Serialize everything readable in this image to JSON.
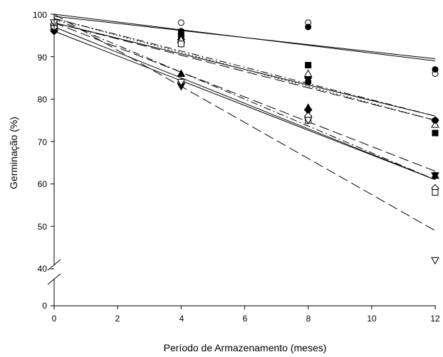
{
  "chart_data": {
    "type": "scatter",
    "xlabel": "Período de Armazenamento (meses)",
    "ylabel": "Germinação (%)",
    "x_ticks": [
      "0",
      "2",
      "4",
      "6",
      "8",
      "10",
      "12"
    ],
    "y_ticks": [
      "0",
      "40",
      "50",
      "60",
      "70",
      "80",
      "90",
      "100"
    ],
    "xlim": [
      0,
      12
    ],
    "ylim_upper": [
      40,
      100
    ],
    "ylim_lower": [
      0,
      40
    ],
    "axis_break": true,
    "grid": false,
    "legend": "none",
    "series": [
      {
        "marker": "circle-open",
        "dash": "solid",
        "points": [
          [
            0,
            98
          ],
          [
            4,
            98
          ],
          [
            8,
            98
          ],
          [
            12,
            86
          ]
        ],
        "fit": [
          [
            0,
            99.5
          ],
          [
            12,
            89.5
          ]
        ]
      },
      {
        "marker": "circle-filled",
        "dash": "solid",
        "points": [
          [
            0,
            97
          ],
          [
            4,
            96
          ],
          [
            8,
            97
          ],
          [
            12,
            87
          ]
        ],
        "fit": [
          [
            0,
            100
          ],
          [
            12,
            89
          ]
        ]
      },
      {
        "marker": "square-filled",
        "dash": "longdash",
        "points": [
          [
            0,
            97
          ],
          [
            4,
            95
          ],
          [
            8,
            88
          ],
          [
            12,
            72
          ]
        ],
        "fit": [
          [
            0,
            98
          ],
          [
            12,
            75
          ]
        ]
      },
      {
        "marker": "diamond-filled",
        "dash": "solid",
        "points": [
          [
            0,
            96
          ],
          [
            4,
            94
          ],
          [
            8,
            85
          ],
          [
            12,
            75
          ]
        ],
        "fit": [
          [
            0,
            98
          ],
          [
            12,
            76
          ]
        ]
      },
      {
        "marker": "triangle-up-open",
        "dash": "dot",
        "points": [
          [
            0,
            97
          ],
          [
            4,
            94
          ],
          [
            8,
            86
          ],
          [
            12,
            74
          ]
        ],
        "fit": [
          [
            0,
            99
          ],
          [
            12,
            75
          ]
        ]
      },
      {
        "marker": "hexagon-filled",
        "dash": "dashdot",
        "points": [
          [
            0,
            97
          ],
          [
            4,
            93
          ],
          [
            8,
            84
          ],
          [
            12,
            75
          ]
        ],
        "fit": [
          [
            0,
            99
          ],
          [
            12,
            76
          ]
        ]
      },
      {
        "marker": "triangle-up-filled",
        "dash": "solid",
        "points": [
          [
            0,
            98
          ],
          [
            4,
            86
          ],
          [
            8,
            78
          ],
          [
            12,
            62
          ]
        ],
        "fit": [
          [
            0,
            97
          ],
          [
            12,
            61
          ]
        ]
      },
      {
        "marker": "triangle-down-filled",
        "dash": "solid",
        "points": [
          [
            0,
            97
          ],
          [
            4,
            83
          ],
          [
            8,
            77
          ],
          [
            12,
            62
          ]
        ],
        "fit": [
          [
            0,
            96
          ],
          [
            12,
            61
          ]
        ]
      },
      {
        "marker": "diamond-open",
        "dash": "dashdot",
        "points": [
          [
            0,
            97
          ],
          [
            4,
            84
          ],
          [
            8,
            76
          ],
          [
            12,
            59
          ]
        ],
        "fit": [
          [
            0,
            99
          ],
          [
            12,
            61
          ]
        ]
      },
      {
        "marker": "square-open",
        "dash": "longdash",
        "points": [
          [
            0,
            98
          ],
          [
            4,
            93
          ],
          [
            8,
            75
          ],
          [
            12,
            58
          ]
        ],
        "fit": [
          [
            0,
            98
          ],
          [
            12,
            63
          ]
        ]
      },
      {
        "marker": "triangle-down-open",
        "dash": "longdash",
        "points": [
          [
            0,
            98
          ],
          [
            4,
            84
          ],
          [
            8,
            75
          ],
          [
            12,
            42
          ]
        ],
        "fit": [
          [
            0,
            100
          ],
          [
            12,
            49
          ]
        ]
      }
    ]
  }
}
